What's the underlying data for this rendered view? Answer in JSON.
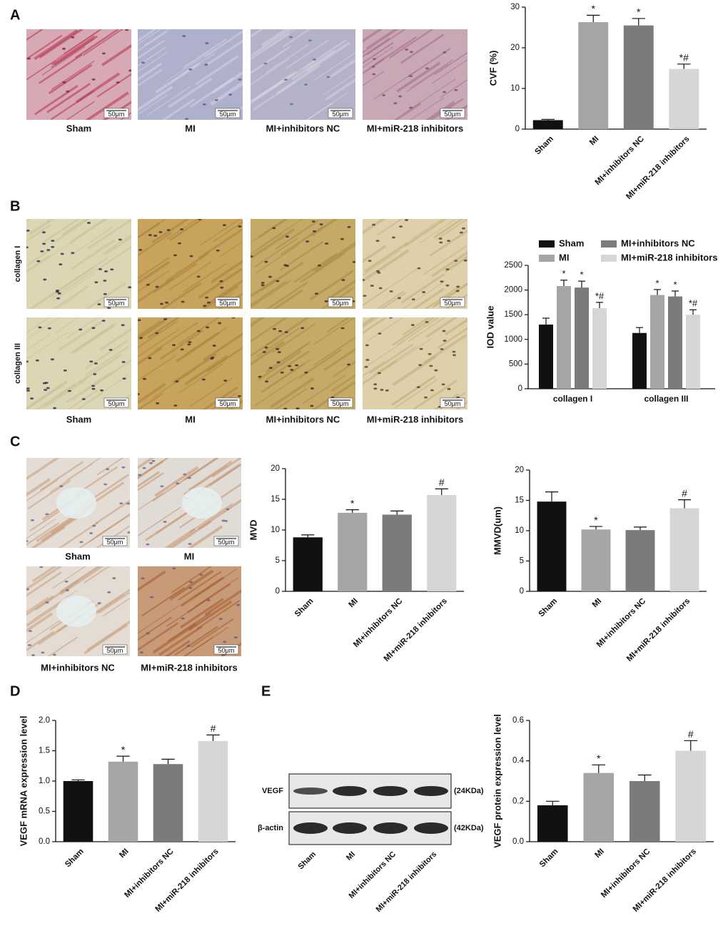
{
  "panel_a": {
    "label": "A",
    "images": [
      {
        "caption": "Sham",
        "scale_bar": "50μm"
      },
      {
        "caption": "MI",
        "scale_bar": "50μm"
      },
      {
        "caption": "MI+inhibitors NC",
        "scale_bar": "50μm"
      },
      {
        "caption": "MI+miR-218 inhibitors",
        "scale_bar": "50μm"
      }
    ]
  },
  "panel_b": {
    "label": "B",
    "rows": [
      {
        "name": "collagen I",
        "scale_bars": [
          "50μm",
          "50μm",
          "50μm",
          "50μm"
        ]
      },
      {
        "name": "collagen III",
        "scale_bars": [
          "50μm",
          "50μm",
          "50μm",
          "50μm"
        ]
      }
    ],
    "captions": [
      "Sham",
      "MI",
      "MI+inhibitors NC",
      "MI+miR-218 inhibitors"
    ]
  },
  "panel_c": {
    "label": "C",
    "images": [
      {
        "caption": "Sham",
        "scale_bar": "50μm"
      },
      {
        "caption": "MI",
        "scale_bar": "50μm"
      },
      {
        "caption": "MI+inhibitors NC",
        "scale_bar": "50μm"
      },
      {
        "caption": "MI+miR-218 inhibitors",
        "scale_bar": "50μm"
      }
    ]
  },
  "panel_d": {
    "label": "D"
  },
  "panel_e": {
    "label": "E",
    "blot": {
      "rows": [
        {
          "name": "VEGF",
          "size": "(24KDa)"
        },
        {
          "name": "β-actin",
          "size": "(42KDa)"
        }
      ],
      "lanes": [
        "Sham",
        "MI",
        "MI+inhibitors NC",
        "MI+miR-218 inhibitors"
      ]
    }
  },
  "chart_data": [
    {
      "type": "bar",
      "y_label": "CVF (%)",
      "categories": [
        "Sham",
        "MI",
        "MI+inhibitors NC",
        "MI+miR-218 inhibitors"
      ],
      "values": [
        2.2,
        26.3,
        25.5,
        14.8
      ],
      "errors": [
        0.2,
        1.7,
        1.7,
        1.2
      ],
      "annotations": [
        null,
        "*",
        "*",
        "*#"
      ],
      "colors": [
        "#111111",
        "#a5a5a5",
        "#7b7b7b",
        "#d6d6d6"
      ],
      "ylim": [
        0,
        30
      ],
      "yticks": [
        0,
        10,
        20,
        30
      ]
    },
    {
      "type": "grouped_bar",
      "y_label": "IOD value",
      "categories": [
        "collagen I",
        "collagen III"
      ],
      "series": [
        {
          "name": "Sham",
          "color": "#111111",
          "values": [
            1300,
            1130
          ],
          "errors": [
            130,
            110
          ],
          "annotations": [
            null,
            null
          ]
        },
        {
          "name": "MI",
          "color": "#a5a5a5",
          "values": [
            2080,
            1900
          ],
          "errors": [
            120,
            110
          ],
          "annotations": [
            "*",
            "*"
          ]
        },
        {
          "name": "MI+inhibitors NC",
          "color": "#7b7b7b",
          "values": [
            2050,
            1870
          ],
          "errors": [
            130,
            110
          ],
          "annotations": [
            "*",
            "*"
          ]
        },
        {
          "name": "MI+miR-218 inhibitors",
          "color": "#d6d6d6",
          "values": [
            1630,
            1500
          ],
          "errors": [
            120,
            100
          ],
          "annotations": [
            "*#",
            "*#"
          ]
        }
      ],
      "legend": "top",
      "ylim": [
        0,
        2500
      ],
      "yticks": [
        0,
        500,
        1000,
        1500,
        2000,
        2500
      ]
    },
    {
      "type": "bar",
      "y_label": "MVD",
      "categories": [
        "Sham",
        "MI",
        "MI+inhibitors NC",
        "MI+miR-218 inhibitors"
      ],
      "values": [
        8.8,
        12.8,
        12.5,
        15.7
      ],
      "errors": [
        0.4,
        0.5,
        0.6,
        1.0
      ],
      "annotations": [
        null,
        "*",
        null,
        "#"
      ],
      "colors": [
        "#111111",
        "#a5a5a5",
        "#7b7b7b",
        "#d6d6d6"
      ],
      "ylim": [
        0,
        20
      ],
      "yticks": [
        0,
        5,
        10,
        15,
        20
      ]
    },
    {
      "type": "bar",
      "y_label": "MMVD(um)",
      "categories": [
        "Sham",
        "MI",
        "MI+inhibitors NC",
        "MI+miR-218 inhibitors"
      ],
      "values": [
        14.8,
        10.2,
        10.1,
        13.7
      ],
      "errors": [
        1.6,
        0.5,
        0.5,
        1.4
      ],
      "annotations": [
        null,
        "*",
        null,
        "#"
      ],
      "colors": [
        "#111111",
        "#a5a5a5",
        "#7b7b7b",
        "#d6d6d6"
      ],
      "ylim": [
        0,
        20
      ],
      "yticks": [
        0,
        5,
        10,
        15,
        20
      ]
    },
    {
      "type": "bar",
      "y_label": "VEGF mRNA expression level",
      "categories": [
        "Sham",
        "MI",
        "MI+inhibitors NC",
        "MI+miR-218 inhibitors"
      ],
      "values": [
        1.0,
        1.32,
        1.28,
        1.66
      ],
      "errors": [
        0.02,
        0.09,
        0.08,
        0.1
      ],
      "annotations": [
        null,
        "*",
        null,
        "#"
      ],
      "colors": [
        "#111111",
        "#a5a5a5",
        "#7b7b7b",
        "#d6d6d6"
      ],
      "ylim": [
        0,
        2.0
      ],
      "yticks": [
        {
          "value": 0,
          "label": "0.0"
        },
        0.5,
        {
          "value": 1,
          "label": "1.0"
        },
        1.5,
        {
          "value": 2,
          "label": "2.0"
        }
      ]
    },
    {
      "type": "bar",
      "y_label": "VEGF protein expression level",
      "categories": [
        "Sham",
        "MI",
        "MI+inhibitors NC",
        "MI+miR-218 inhibitors"
      ],
      "values": [
        0.18,
        0.34,
        0.3,
        0.45
      ],
      "errors": [
        0.02,
        0.04,
        0.03,
        0.05
      ],
      "annotations": [
        null,
        "*",
        null,
        "#"
      ],
      "colors": [
        "#111111",
        "#a5a5a5",
        "#7b7b7b",
        "#d6d6d6"
      ],
      "ylim": [
        0,
        0.6
      ],
      "yticks": [
        {
          "value": 0,
          "label": "0.0"
        },
        0.2,
        0.4,
        0.6
      ]
    }
  ]
}
